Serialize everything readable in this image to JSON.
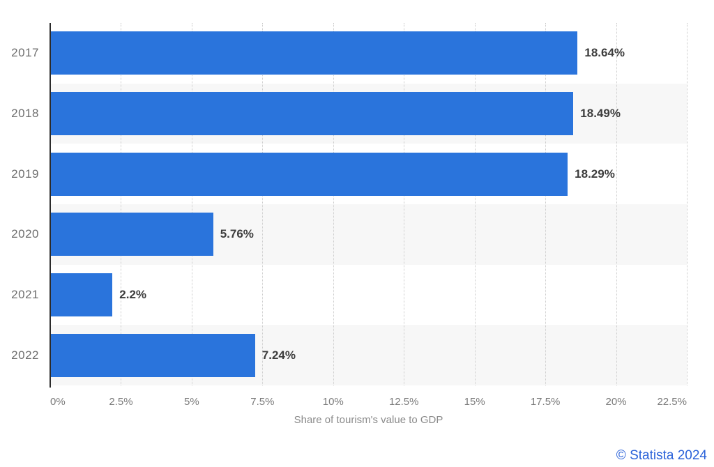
{
  "credit": "© Statista 2024",
  "chart_data": {
    "type": "bar",
    "orientation": "horizontal",
    "title": "",
    "xlabel": "Share of tourism's value to GDP",
    "ylabel": "",
    "categories": [
      "2017",
      "2018",
      "2019",
      "2020",
      "2021",
      "2022"
    ],
    "values": [
      18.64,
      18.49,
      18.29,
      5.76,
      2.2,
      7.24
    ],
    "value_labels": [
      "18.64%",
      "18.49%",
      "18.29%",
      "5.76%",
      "2.2%",
      "7.24%"
    ],
    "xlim": [
      0,
      22.5
    ],
    "x_tick_values": [
      0,
      2.5,
      5,
      7.5,
      10,
      12.5,
      15,
      17.5,
      20,
      22.5
    ],
    "x_tick_labels": [
      "0%",
      "2.5%",
      "5%",
      "7.5%",
      "10%",
      "12.5%",
      "15%",
      "17.5%",
      "20%",
      "22.5%"
    ],
    "grid": "vertical-dotted",
    "legend": "none",
    "bar_color": "#2a74dc",
    "band_color": "#f7f7f7",
    "shaded_row_indices": [
      1,
      3,
      5
    ],
    "gridline_color": "#cccccc",
    "axis_line_color": "#2b2b2b"
  }
}
